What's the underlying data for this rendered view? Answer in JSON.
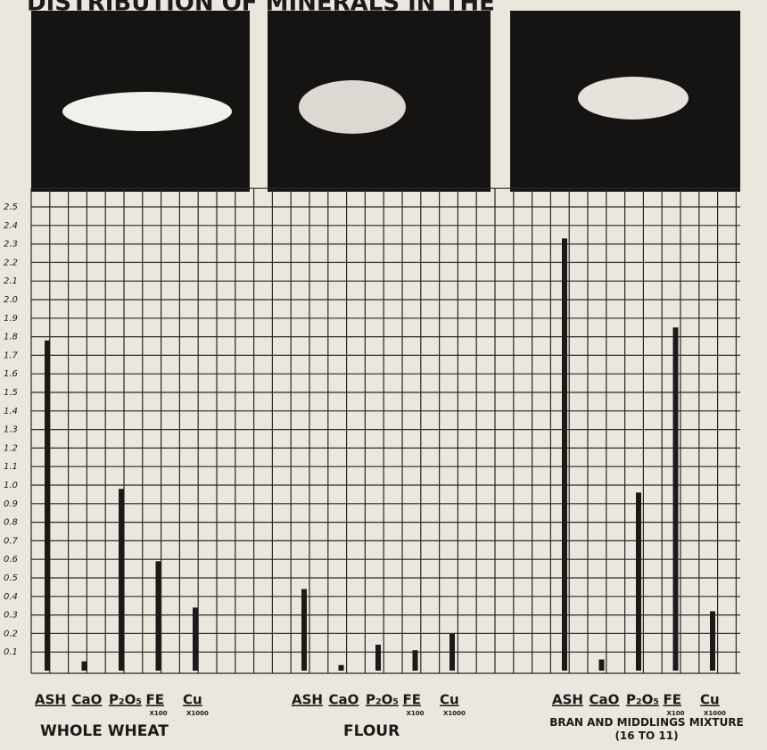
{
  "chart_data": {
    "type": "bar",
    "title": "DISTRIBUTION OF MINERALS IN THE",
    "categories": [
      "ASH",
      "CaO",
      "P₂O₅",
      "FE",
      "Cu"
    ],
    "factors": [
      null,
      null,
      null,
      "X100",
      "X1000"
    ],
    "series": [
      {
        "name": "WHOLE WHEAT",
        "color": "#1c1a18",
        "values": [
          1.78,
          0.05,
          0.98,
          0.59,
          0.34
        ]
      },
      {
        "name": "FLOUR",
        "color": "#1c1a18",
        "values": [
          0.44,
          0.03,
          0.14,
          0.11,
          0.2
        ]
      },
      {
        "name": "BRAN AND MIDDLINGS MIXTURE (16 TO 11)",
        "color": "#1c1a18",
        "values": [
          2.33,
          0.06,
          0.96,
          1.85,
          0.32
        ]
      }
    ],
    "ylim": [
      0,
      2.6
    ],
    "yticks": [
      0.1,
      0.2,
      0.3,
      0.4,
      0.5,
      0.6,
      0.7,
      0.8,
      0.9,
      {
        "value": 1,
        "label": "1.0"
      },
      1.1,
      1.2,
      1.3,
      1.4,
      1.5,
      1.6,
      1.7,
      1.8,
      1.9,
      {
        "value": 2,
        "label": "2.0"
      },
      2.1,
      2.2,
      2.3,
      2.4,
      2.5
    ],
    "grid": true
  }
}
